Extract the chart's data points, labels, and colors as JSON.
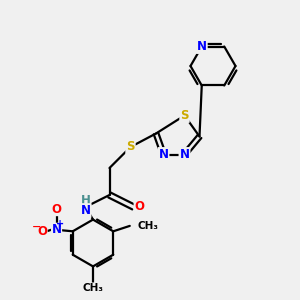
{
  "background_color": "#f0f0f0",
  "atom_colors": {
    "N": "#0000ff",
    "O": "#ff0000",
    "S": "#ccaa00",
    "C": "#000000",
    "H": "#4a9090"
  },
  "bond_color": "#000000",
  "bond_width": 1.6,
  "figsize": [
    3.0,
    3.0
  ],
  "dpi": 100,
  "xlim": [
    0,
    10
  ],
  "ylim": [
    0,
    10
  ]
}
